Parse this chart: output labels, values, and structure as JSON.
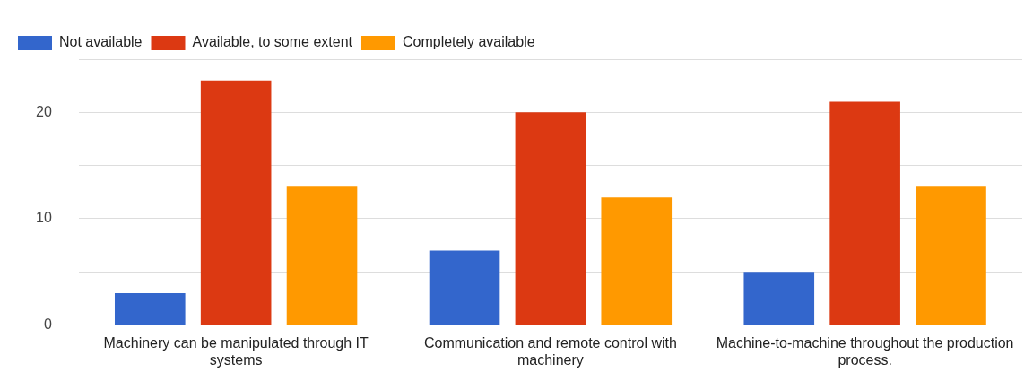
{
  "chart_data": {
    "type": "bar",
    "categories": [
      "Machinery can be manipulated through IT systems",
      "Communication and remote control with machinery",
      "Machine-to-machine throughout the production process."
    ],
    "series": [
      {
        "name": "Not available",
        "color": "#3366cc",
        "values": [
          3,
          7,
          5
        ]
      },
      {
        "name": "Available, to some extent",
        "color": "#dc3912",
        "values": [
          23,
          20,
          21
        ]
      },
      {
        "name": "Completely available",
        "color": "#ff9900",
        "values": [
          13,
          12,
          13
        ]
      }
    ],
    "ylim": [
      0,
      25
    ],
    "yticks": [
      0,
      {
        "value": 5,
        "label": null
      },
      10,
      {
        "value": 15,
        "label": null
      },
      20,
      {
        "value": 25,
        "label": null
      }
    ],
    "grid": "y",
    "legend": "top left"
  }
}
